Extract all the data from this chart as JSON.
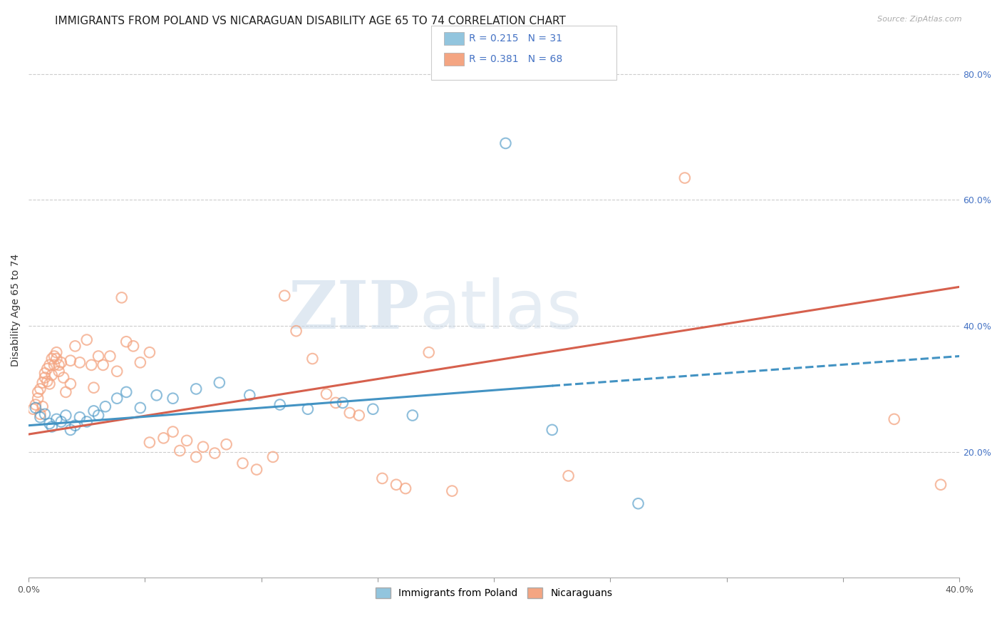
{
  "title": "IMMIGRANTS FROM POLAND VS NICARAGUAN DISABILITY AGE 65 TO 74 CORRELATION CHART",
  "source": "Source: ZipAtlas.com",
  "ylabel": "Disability Age 65 to 74",
  "legend_label1": "Immigrants from Poland",
  "legend_label2": "Nicaraguans",
  "legend_R1": "R = 0.215",
  "legend_N1": "N = 31",
  "legend_R2": "R = 0.381",
  "legend_N2": "N = 68",
  "xmin": 0.0,
  "xmax": 0.4,
  "ymin": 0.0,
  "ymax": 0.85,
  "xticks": [
    0.0,
    0.05,
    0.1,
    0.15,
    0.2,
    0.25,
    0.3,
    0.35,
    0.4
  ],
  "ytick_right": [
    0.2,
    0.4,
    0.6,
    0.8
  ],
  "ytick_right_labels": [
    "20.0%",
    "40.0%",
    "60.0%",
    "80.0%"
  ],
  "watermark_zip": "ZIP",
  "watermark_atlas": "atlas",
  "blue_color": "#92c5de",
  "pink_color": "#f4a582",
  "blue_line_color": "#4393c3",
  "pink_line_color": "#d6604d",
  "blue_scatter": [
    [
      0.003,
      0.27
    ],
    [
      0.005,
      0.255
    ],
    [
      0.007,
      0.26
    ],
    [
      0.009,
      0.245
    ],
    [
      0.01,
      0.24
    ],
    [
      0.012,
      0.252
    ],
    [
      0.014,
      0.248
    ],
    [
      0.016,
      0.258
    ],
    [
      0.018,
      0.235
    ],
    [
      0.02,
      0.242
    ],
    [
      0.022,
      0.255
    ],
    [
      0.025,
      0.248
    ],
    [
      0.028,
      0.265
    ],
    [
      0.03,
      0.258
    ],
    [
      0.033,
      0.272
    ],
    [
      0.038,
      0.285
    ],
    [
      0.042,
      0.295
    ],
    [
      0.048,
      0.27
    ],
    [
      0.055,
      0.29
    ],
    [
      0.062,
      0.285
    ],
    [
      0.072,
      0.3
    ],
    [
      0.082,
      0.31
    ],
    [
      0.095,
      0.29
    ],
    [
      0.108,
      0.275
    ],
    [
      0.12,
      0.268
    ],
    [
      0.135,
      0.278
    ],
    [
      0.148,
      0.268
    ],
    [
      0.165,
      0.258
    ],
    [
      0.205,
      0.69
    ],
    [
      0.225,
      0.235
    ],
    [
      0.262,
      0.118
    ]
  ],
  "pink_scatter": [
    [
      0.002,
      0.268
    ],
    [
      0.003,
      0.275
    ],
    [
      0.004,
      0.285
    ],
    [
      0.004,
      0.295
    ],
    [
      0.005,
      0.26
    ],
    [
      0.005,
      0.3
    ],
    [
      0.006,
      0.31
    ],
    [
      0.006,
      0.272
    ],
    [
      0.007,
      0.318
    ],
    [
      0.007,
      0.325
    ],
    [
      0.008,
      0.312
    ],
    [
      0.008,
      0.332
    ],
    [
      0.009,
      0.338
    ],
    [
      0.009,
      0.308
    ],
    [
      0.01,
      0.348
    ],
    [
      0.01,
      0.322
    ],
    [
      0.011,
      0.352
    ],
    [
      0.011,
      0.338
    ],
    [
      0.012,
      0.348
    ],
    [
      0.012,
      0.358
    ],
    [
      0.013,
      0.338
    ],
    [
      0.013,
      0.328
    ],
    [
      0.014,
      0.342
    ],
    [
      0.015,
      0.318
    ],
    [
      0.016,
      0.295
    ],
    [
      0.018,
      0.308
    ],
    [
      0.02,
      0.368
    ],
    [
      0.022,
      0.342
    ],
    [
      0.025,
      0.378
    ],
    [
      0.027,
      0.338
    ],
    [
      0.03,
      0.352
    ],
    [
      0.032,
      0.338
    ],
    [
      0.035,
      0.352
    ],
    [
      0.038,
      0.328
    ],
    [
      0.04,
      0.445
    ],
    [
      0.042,
      0.375
    ],
    [
      0.045,
      0.368
    ],
    [
      0.048,
      0.342
    ],
    [
      0.052,
      0.358
    ],
    [
      0.052,
      0.215
    ],
    [
      0.058,
      0.222
    ],
    [
      0.062,
      0.232
    ],
    [
      0.065,
      0.202
    ],
    [
      0.068,
      0.218
    ],
    [
      0.072,
      0.192
    ],
    [
      0.075,
      0.208
    ],
    [
      0.08,
      0.198
    ],
    [
      0.085,
      0.212
    ],
    [
      0.092,
      0.182
    ],
    [
      0.098,
      0.172
    ],
    [
      0.105,
      0.192
    ],
    [
      0.11,
      0.448
    ],
    [
      0.115,
      0.392
    ],
    [
      0.122,
      0.348
    ],
    [
      0.128,
      0.292
    ],
    [
      0.132,
      0.278
    ],
    [
      0.138,
      0.262
    ],
    [
      0.142,
      0.258
    ],
    [
      0.152,
      0.158
    ],
    [
      0.158,
      0.148
    ],
    [
      0.162,
      0.142
    ],
    [
      0.172,
      0.358
    ],
    [
      0.182,
      0.138
    ],
    [
      0.232,
      0.162
    ],
    [
      0.282,
      0.635
    ],
    [
      0.372,
      0.252
    ],
    [
      0.392,
      0.148
    ],
    [
      0.018,
      0.345
    ],
    [
      0.028,
      0.302
    ]
  ],
  "blue_solid_trendline": [
    [
      0.0,
      0.242
    ],
    [
      0.225,
      0.305
    ]
  ],
  "blue_dashed_trendline": [
    [
      0.225,
      0.305
    ],
    [
      0.4,
      0.352
    ]
  ],
  "pink_trendline": [
    [
      0.0,
      0.228
    ],
    [
      0.4,
      0.462
    ]
  ],
  "background_color": "#ffffff",
  "grid_color": "#cccccc",
  "title_fontsize": 11,
  "axis_fontsize": 9
}
